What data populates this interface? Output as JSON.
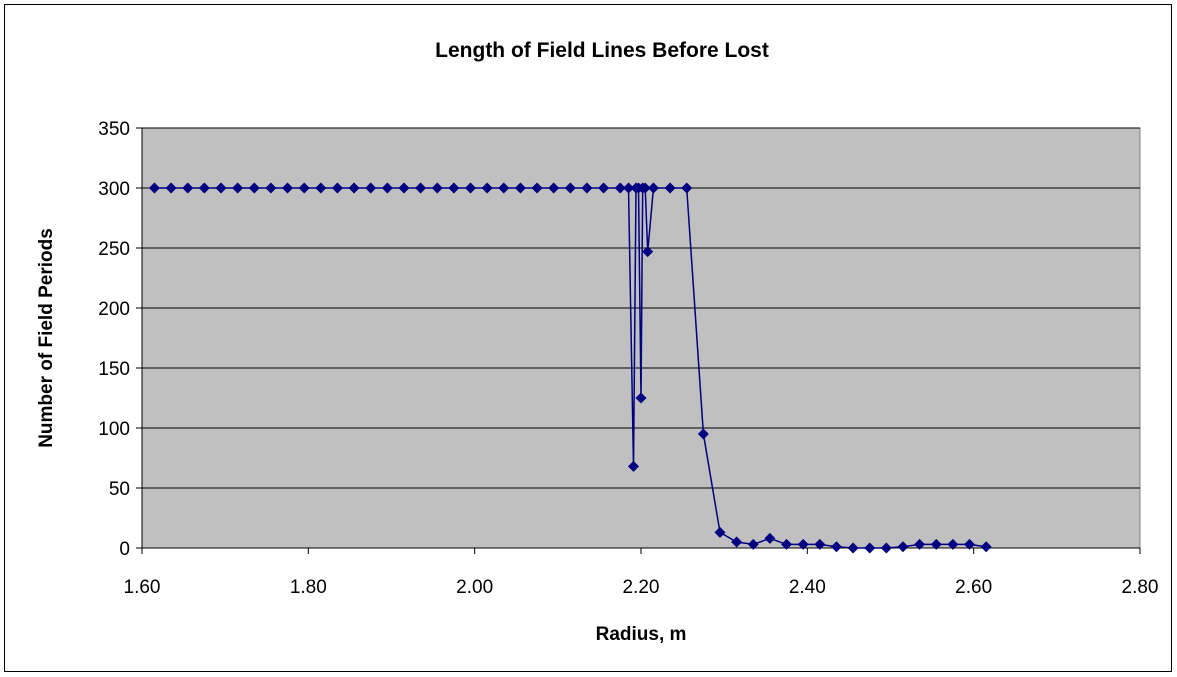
{
  "chart_data": {
    "type": "scatter",
    "title": "Length of Field Lines Before Lost",
    "xlabel": "Radius, m",
    "ylabel": "Number of Field Periods",
    "xlim": [
      1.6,
      2.8
    ],
    "ylim": [
      0,
      350
    ],
    "x_ticks": [
      "1.60",
      "1.80",
      "2.00",
      "2.20",
      "2.40",
      "2.60",
      "2.80"
    ],
    "y_ticks": [
      "0",
      "50",
      "100",
      "150",
      "200",
      "250",
      "300",
      "350"
    ],
    "grid": "horizontal",
    "legend": "none",
    "plot_background": "#C0C0C0",
    "series_color": "#000080",
    "series": [
      {
        "marker": "diamond",
        "line": true,
        "x": [
          1.615,
          1.635,
          1.655,
          1.675,
          1.695,
          1.715,
          1.735,
          1.755,
          1.775,
          1.795,
          1.815,
          1.835,
          1.855,
          1.875,
          1.895,
          1.915,
          1.935,
          1.955,
          1.975,
          1.995,
          2.015,
          2.035,
          2.055,
          2.075,
          2.095,
          2.115,
          2.135,
          2.155,
          2.175,
          2.185,
          2.191,
          2.194,
          2.197,
          2.2,
          2.202,
          2.205,
          2.208,
          2.215,
          2.235,
          2.255,
          2.275,
          2.295,
          2.315,
          2.335,
          2.355,
          2.375,
          2.395,
          2.415,
          2.435,
          2.455,
          2.475,
          2.495,
          2.515,
          2.535,
          2.555,
          2.575,
          2.595,
          2.615
        ],
        "y": [
          300,
          300,
          300,
          300,
          300,
          300,
          300,
          300,
          300,
          300,
          300,
          300,
          300,
          300,
          300,
          300,
          300,
          300,
          300,
          300,
          300,
          300,
          300,
          300,
          300,
          300,
          300,
          300,
          300,
          300,
          68,
          300,
          300,
          125,
          300,
          300,
          247,
          300,
          300,
          300,
          95,
          13,
          5,
          3,
          8,
          3,
          3,
          3,
          1,
          0,
          0,
          0,
          1,
          3,
          3,
          3,
          3,
          1
        ]
      }
    ]
  }
}
